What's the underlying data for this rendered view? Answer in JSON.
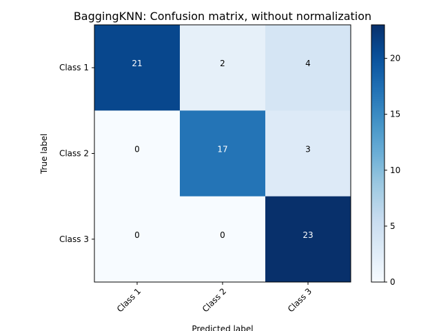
{
  "chart_data": {
    "type": "heatmap",
    "title": "BaggingKNN: Confusion matrix, without normalization",
    "xlabel": "Predicted label",
    "ylabel": "True label",
    "x_categories": [
      "Class 1",
      "Class 2",
      "Class 3"
    ],
    "y_categories": [
      "Class 1",
      "Class 2",
      "Class 3"
    ],
    "values": [
      [
        21,
        2,
        4
      ],
      [
        0,
        17,
        3
      ],
      [
        0,
        0,
        23
      ]
    ],
    "colormap": "Blues",
    "colorbar": {
      "range": [
        0,
        23
      ],
      "ticks": [
        "0",
        "5",
        "10",
        "15",
        "20"
      ]
    },
    "grid": false
  }
}
